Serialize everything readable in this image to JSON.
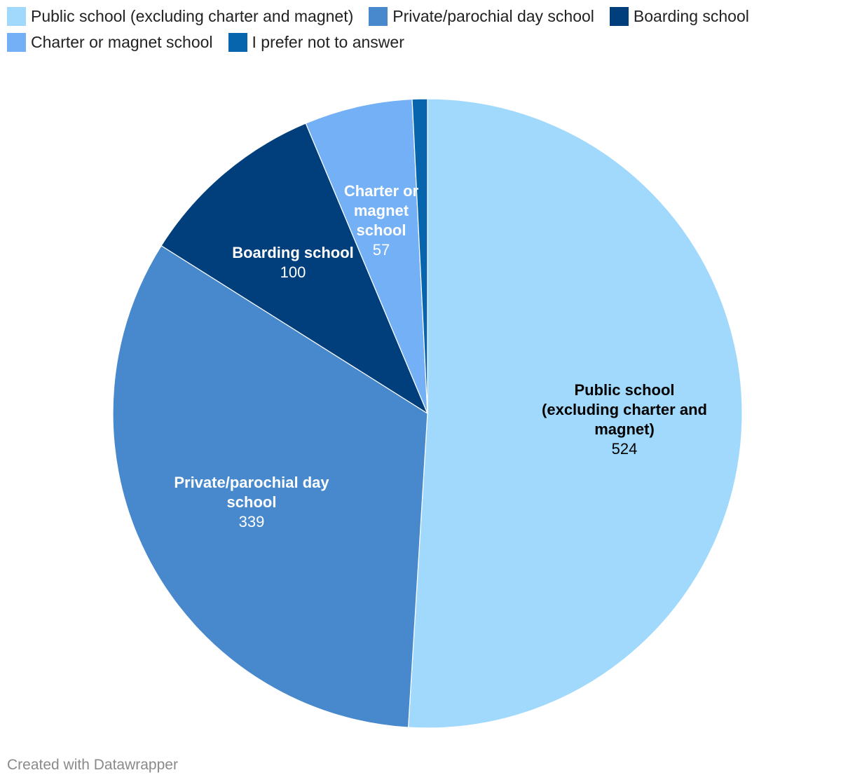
{
  "chart_data": {
    "type": "pie",
    "title": "",
    "categories": [
      "Public school (excluding charter and magnet)",
      "Private/parochial day school",
      "Boarding school",
      "Charter or magnet school",
      "I prefer not to answer"
    ],
    "values": [
      524,
      339,
      100,
      57,
      8
    ],
    "colors": [
      "#a0d9fc",
      "#4789cc",
      "#013f7c",
      "#74b0f5",
      "#0665ad"
    ],
    "slice_labels": [
      {
        "name": "Public school (excluding charter and magnet)",
        "value": "524",
        "text_color": "#000000"
      },
      {
        "name": "Private/parochial day school",
        "value": "339",
        "text_color": "#ffffff"
      },
      {
        "name": "Boarding school",
        "value": "100",
        "text_color": "#ffffff"
      },
      {
        "name": "Charter or magnet school",
        "value": "57",
        "text_color": "#ffffff"
      }
    ],
    "legend_position": "top-left"
  },
  "legend": {
    "items": [
      {
        "label": "Public school (excluding charter and magnet)",
        "color": "#a0d9fc"
      },
      {
        "label": "Private/parochial day school",
        "color": "#4789cc"
      },
      {
        "label": "Boarding school",
        "color": "#013f7c"
      },
      {
        "label": "Charter or magnet school",
        "color": "#74b0f5"
      },
      {
        "label": "I prefer not to answer",
        "color": "#0665ad"
      }
    ]
  },
  "footer": {
    "credit": "Created with Datawrapper"
  }
}
